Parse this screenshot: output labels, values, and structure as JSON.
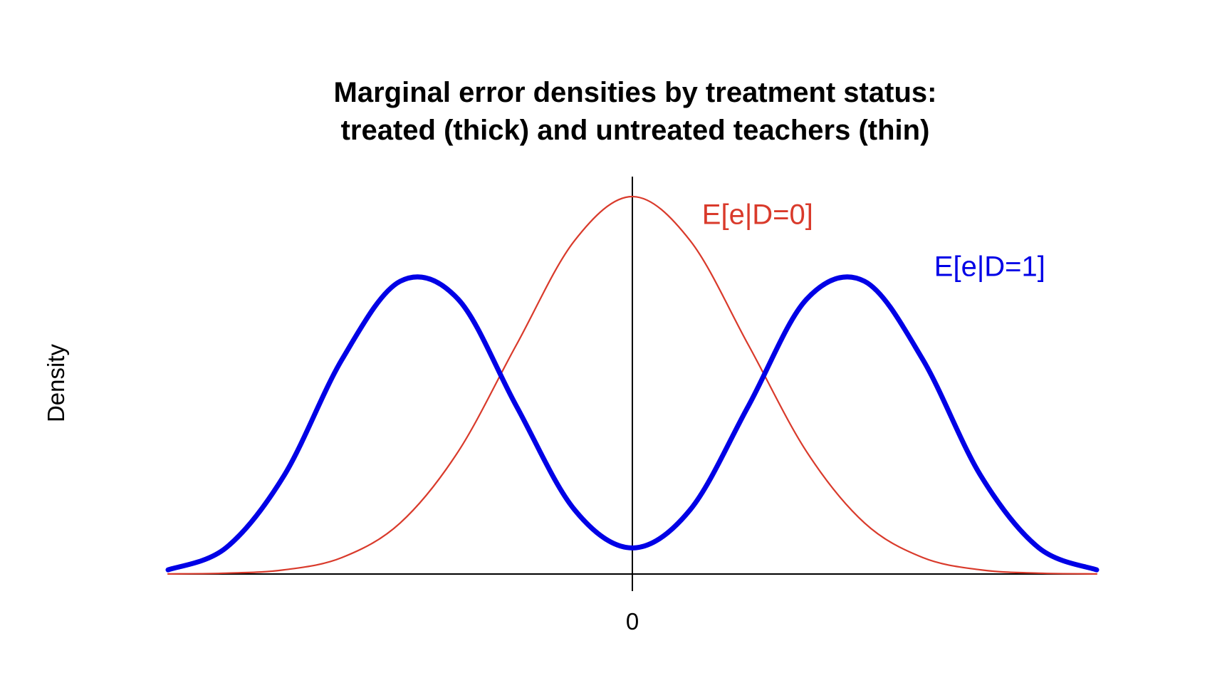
{
  "chart_data": {
    "type": "line",
    "title_lines": [
      "Marginal error densities by treatment status:",
      "treated (thick) and untreated teachers (thin)"
    ],
    "ylabel": "Density",
    "xlabel": "",
    "x_ticks": [
      0
    ],
    "x_tick_labels": [
      "0"
    ],
    "xlim": [
      -4,
      4
    ],
    "ylim": [
      0,
      0.42
    ],
    "grid": false,
    "series": [
      {
        "name": "E[e|D=0]",
        "color": "#d93a2b",
        "line": "thin",
        "x": [
          -4,
          -3.5,
          -3,
          -2.5,
          -2,
          -1.5,
          -1,
          -0.5,
          0,
          0.5,
          1,
          1.5,
          2,
          2.5,
          3,
          3.5,
          4
        ],
        "y": [
          0.0001,
          0.0009,
          0.0044,
          0.0175,
          0.054,
          0.1295,
          0.242,
          0.352,
          0.3989,
          0.352,
          0.242,
          0.1295,
          0.054,
          0.0175,
          0.0044,
          0.0009,
          0.0001
        ]
      },
      {
        "name": "E[e|D=1]",
        "color": "#0000e6",
        "line": "thick",
        "x": [
          -4,
          -3.5,
          -3,
          -2.5,
          -2,
          -1.5,
          -1,
          -0.5,
          0,
          0.5,
          1,
          1.5,
          2,
          2.5,
          3,
          3.5,
          4
        ],
        "y": [
          0.0044,
          0.0278,
          0.1042,
          0.2271,
          0.3094,
          0.2903,
          0.1777,
          0.0682,
          0.0276,
          0.0682,
          0.1777,
          0.2903,
          0.3094,
          0.2271,
          0.1042,
          0.0278,
          0.0044
        ]
      }
    ]
  }
}
